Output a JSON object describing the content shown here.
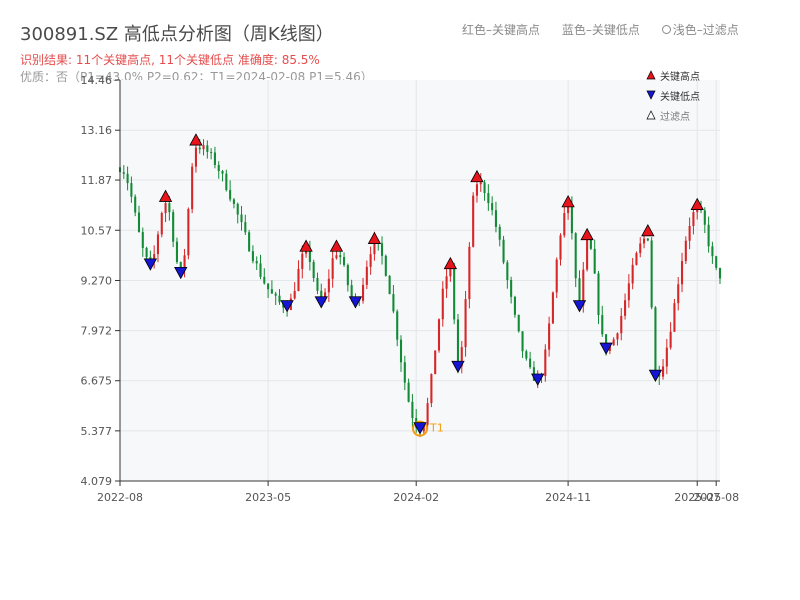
{
  "title": "300891.SZ 高低点分析图（周K线图）",
  "result_line": "识别结果: 11个关键高点, 11个关键低点  准确度: 85.5%",
  "quality_line": "优质：否（P1=43.0%  P2=0.62；T1=2024-02-08 P1=5.46）",
  "top_legend": {
    "red": "红色–关键高点",
    "blue": "蓝色–关键低点",
    "filtered": "浅色–过滤点"
  },
  "legend": {
    "high": "关键高点",
    "low": "关键低点",
    "filtered": "过滤点"
  },
  "colors": {
    "up": "#d62728",
    "down": "#138a36",
    "high_marker": "#e8141c",
    "low_marker": "#1515d4",
    "t1": "#f39c12",
    "plot_bg": "#f7f8fa",
    "grid": "#e3e6ea"
  },
  "t1_label": "T1",
  "chart_data": {
    "type": "candlestick",
    "y_ticks": [
      "4.079",
      "5.377",
      "6.675",
      "7.972",
      "9.270",
      "10.57",
      "11.87",
      "13.16",
      "14.46"
    ],
    "ylim": [
      4.079,
      14.46
    ],
    "x_ticks": [
      {
        "label": "2022-08",
        "date": "2022-08-04"
      },
      {
        "label": "2023-05",
        "date": "2023-05-04"
      },
      {
        "label": "2024-02",
        "date": "2024-02-01"
      },
      {
        "label": "2024-11",
        "date": "2024-11-07"
      },
      {
        "label": "2025-07",
        "date": "2025-07-03"
      },
      {
        "label": "2025-08",
        "date": "2025-08-07"
      }
    ],
    "xlim": [
      "2022-08-04",
      "2025-08-14"
    ],
    "grid": true,
    "legend_position": "top-right",
    "key_points": [
      {
        "o": 10.4,
        "c": 9.7,
        "h": 10.5,
        "l": 9.6
      },
      {
        "o": 12.6,
        "c": 12.0,
        "h": 13.2,
        "l": 11.8
      },
      {
        "o": 9.7,
        "c": 9.6,
        "h": 10.7,
        "l": 9.3
      },
      {
        "o": 9.5,
        "c": 8.8,
        "h": 9.8,
        "l": 8.6
      },
      {
        "o": 9.7,
        "c": 9.3,
        "h": 10.1,
        "l": 9.0
      },
      {
        "o": 8.3,
        "c": 8.9,
        "h": 9.0,
        "l": 8.4
      },
      {
        "o": 11.6,
        "c": 10.6,
        "h": 11.7,
        "l": 10.6
      },
      {
        "o": 9.9,
        "c": 10.3,
        "h": 10.4,
        "l": 9.9
      }
    ],
    "series": [
      {
        "name": "关键高点",
        "marker": "triangle-up",
        "points": [
          {
            "date": "2022-10-27",
            "value": 11.29
          },
          {
            "date": "2022-12-22",
            "value": 12.75
          },
          {
            "date": "2023-07-13",
            "value": 10.0
          },
          {
            "date": "2023-09-07",
            "value": 10.0
          },
          {
            "date": "2023-11-16",
            "value": 10.2
          },
          {
            "date": "2024-04-04",
            "value": 9.55
          },
          {
            "date": "2024-05-23",
            "value": 11.8
          },
          {
            "date": "2024-11-07",
            "value": 11.15
          },
          {
            "date": "2024-12-12",
            "value": 10.3
          },
          {
            "date": "2025-04-03",
            "value": 10.4
          },
          {
            "date": "2025-07-03",
            "value": 11.08
          }
        ]
      },
      {
        "name": "关键低点",
        "marker": "triangle-down",
        "points": [
          {
            "date": "2022-09-29",
            "value": 9.7
          },
          {
            "date": "2022-11-24",
            "value": 9.48
          },
          {
            "date": "2023-06-08",
            "value": 8.62
          },
          {
            "date": "2023-08-10",
            "value": 8.72
          },
          {
            "date": "2023-10-12",
            "value": 8.72
          },
          {
            "date": "2024-02-08",
            "value": 5.46
          },
          {
            "date": "2024-04-18",
            "value": 7.05
          },
          {
            "date": "2024-09-12",
            "value": 6.72
          },
          {
            "date": "2024-11-28",
            "value": 8.62
          },
          {
            "date": "2025-01-16",
            "value": 7.52
          },
          {
            "date": "2025-04-17",
            "value": 6.82
          }
        ]
      }
    ],
    "t1": {
      "date": "2024-02-08",
      "value": 5.46
    }
  }
}
